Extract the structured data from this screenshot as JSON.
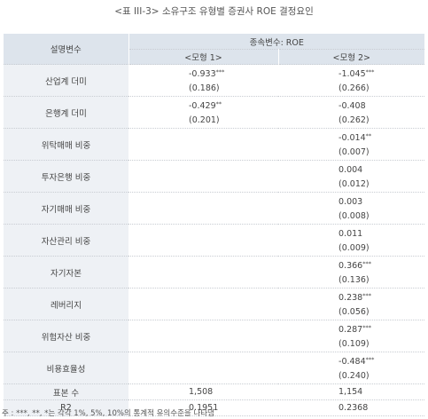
{
  "title": "<표 III-3> 소유구조 유형별 증권사 ROE 결정요인",
  "header": {
    "var_label": "설명변수",
    "dep_label": "종속변수: ROE",
    "model1": "<모형 1>",
    "model2": "<모형 2>"
  },
  "rows": [
    {
      "label": "산업계 더미",
      "m1": {
        "coef": "-0.933",
        "stars": "***",
        "se": "(0.186)"
      },
      "m2": {
        "coef": "-1.045",
        "stars": "***",
        "se": "(0.266)"
      }
    },
    {
      "label": "은행계 더미",
      "m1": {
        "coef": "-0.429",
        "stars": "**",
        "se": "(0.201)"
      },
      "m2": {
        "coef": "-0.408",
        "stars": "",
        "se": "(0.262)"
      }
    },
    {
      "label": "위탁매매 비중",
      "m1": {
        "coef": "",
        "stars": "",
        "se": ""
      },
      "m2": {
        "coef": "-0.014",
        "stars": "**",
        "se": "(0.007)"
      }
    },
    {
      "label": "투자은행 비중",
      "m1": {
        "coef": "",
        "stars": "",
        "se": ""
      },
      "m2": {
        "coef": "0.004",
        "stars": "",
        "se": "(0.012)"
      }
    },
    {
      "label": "자기매매 비중",
      "m1": {
        "coef": "",
        "stars": "",
        "se": ""
      },
      "m2": {
        "coef": "0.003",
        "stars": "",
        "se": "(0.008)"
      }
    },
    {
      "label": "자산관리 비중",
      "m1": {
        "coef": "",
        "stars": "",
        "se": ""
      },
      "m2": {
        "coef": "0.011",
        "stars": "",
        "se": "(0.009)"
      }
    },
    {
      "label": "자기자본",
      "m1": {
        "coef": "",
        "stars": "",
        "se": ""
      },
      "m2": {
        "coef": "0.366",
        "stars": "***",
        "se": "(0.136)"
      }
    },
    {
      "label": "레버리지",
      "m1": {
        "coef": "",
        "stars": "",
        "se": ""
      },
      "m2": {
        "coef": "0.238",
        "stars": "***",
        "se": "(0.056)"
      }
    },
    {
      "label": "위험자산 비중",
      "m1": {
        "coef": "",
        "stars": "",
        "se": ""
      },
      "m2": {
        "coef": "0.287",
        "stars": "***",
        "se": "(0.109)"
      }
    },
    {
      "label": "비용효율성",
      "m1": {
        "coef": "",
        "stars": "",
        "se": ""
      },
      "m2": {
        "coef": "-0.484",
        "stars": "***",
        "se": "(0.240)"
      }
    }
  ],
  "summary": [
    {
      "label": "표본 수",
      "m1": "1,508",
      "m2": "1,154"
    },
    {
      "label": "R2",
      "m1": "0.1951",
      "m2": "0.2368"
    }
  ],
  "footnote": "주 : ***, **, *는 각각 1%, 5%, 10%의 통계적 유의수준을 나타냄"
}
